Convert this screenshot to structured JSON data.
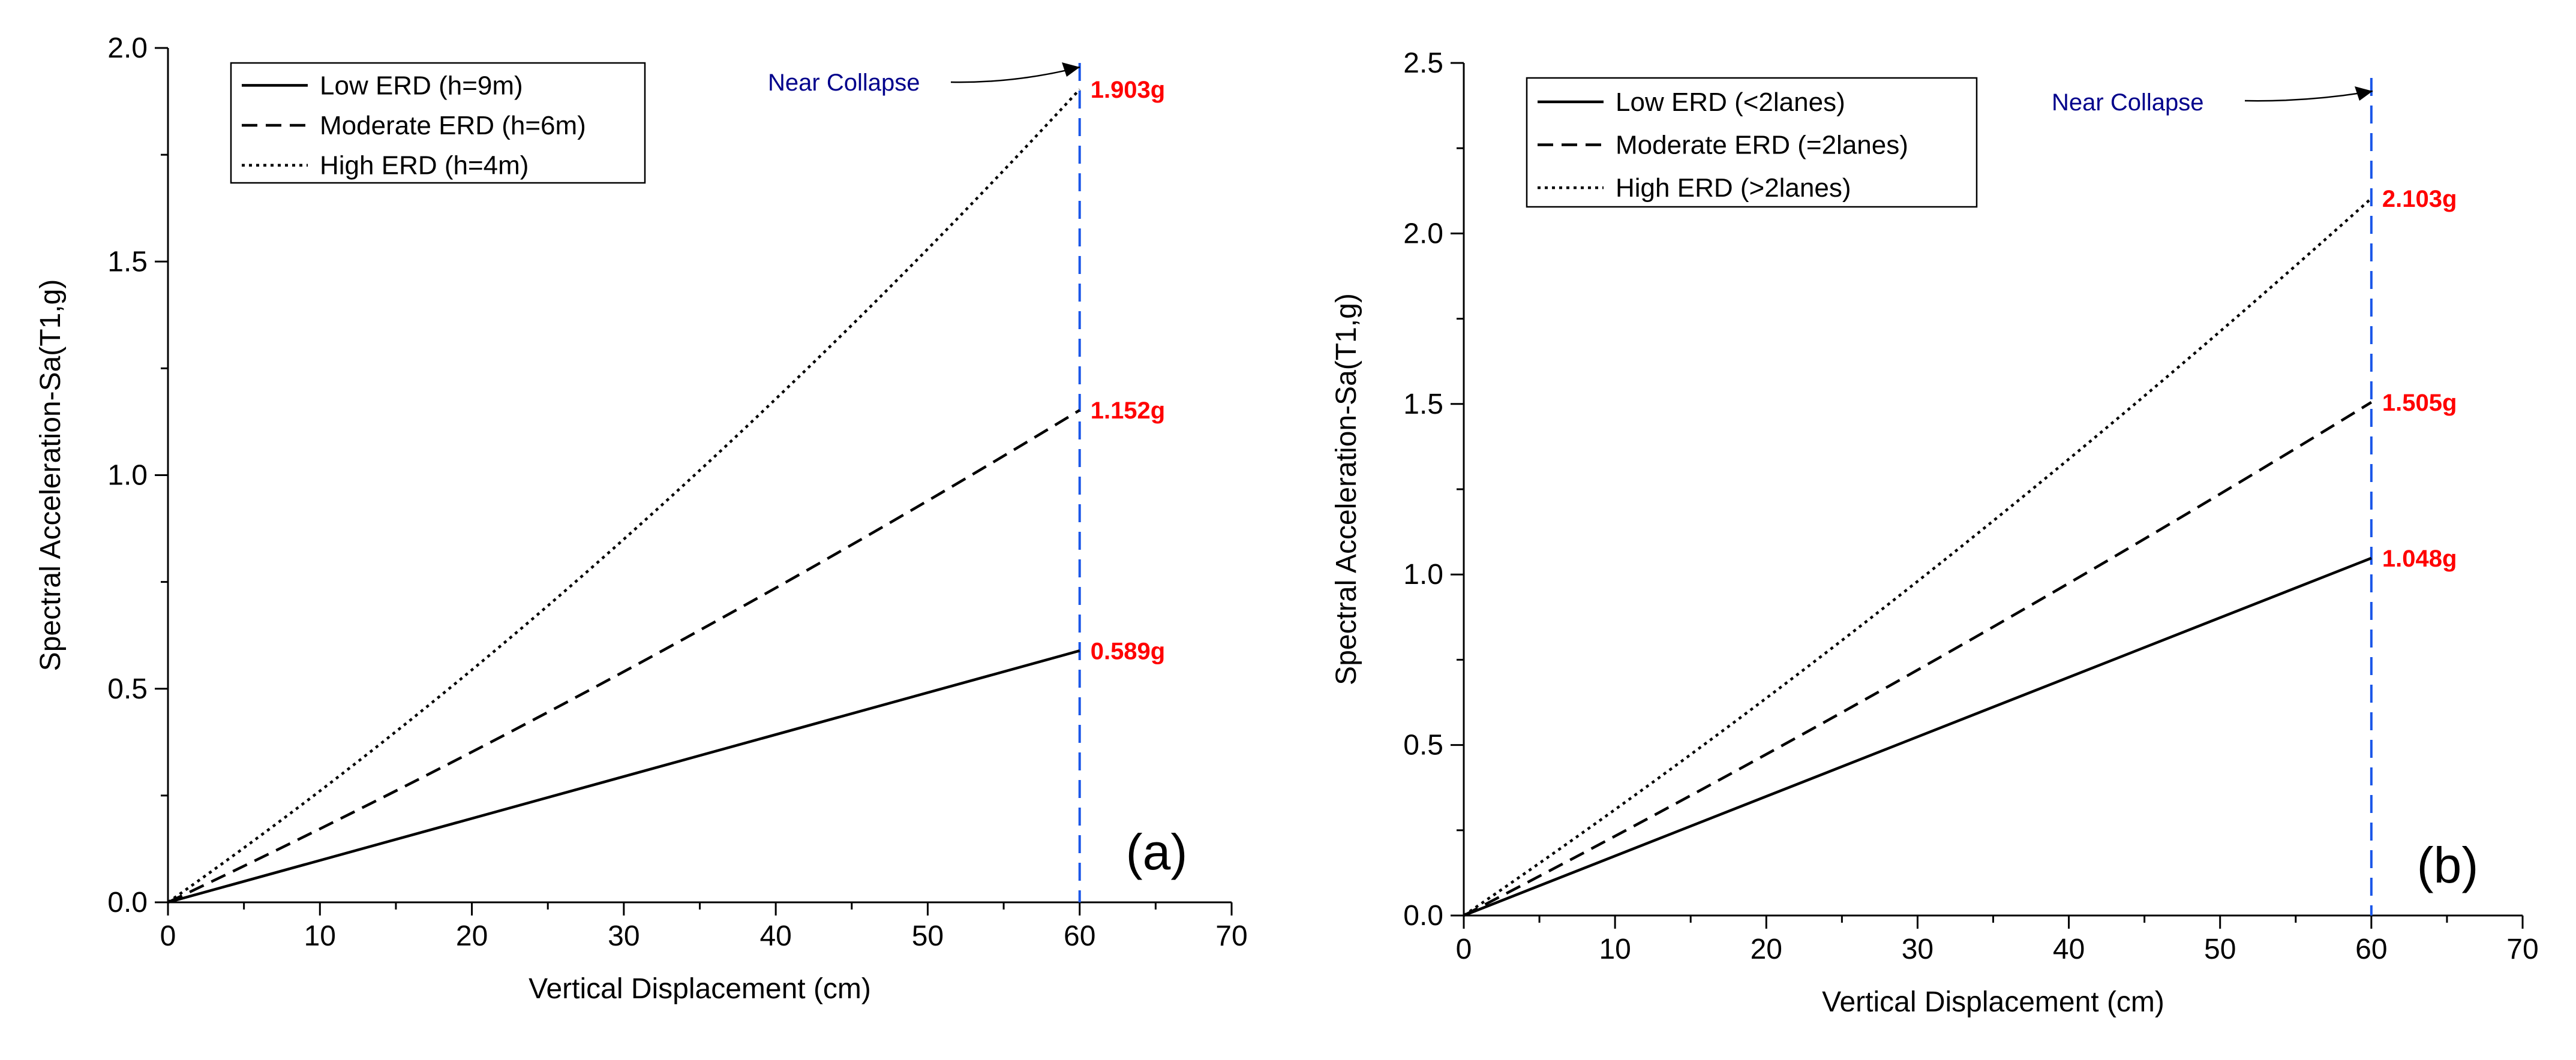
{
  "chart_data": [
    {
      "type": "line",
      "panel_label": "(a)",
      "xlabel": "Vertical Displacement (cm)",
      "ylabel": "Spectral Acceleration-Sa(T1,g)",
      "xlim": [
        0,
        70
      ],
      "ylim": [
        0,
        2.0
      ],
      "x_ticks": [
        "0",
        "10",
        "20",
        "30",
        "40",
        "50",
        "60",
        "70"
      ],
      "y_ticks": [
        "0.0",
        "0.5",
        "1.0",
        "1.5",
        "2.0"
      ],
      "grid": false,
      "legend_position": "top-left",
      "series": [
        {
          "name": "Low ERD (h=9m)",
          "style": "solid",
          "x": [
            0,
            60
          ],
          "y": [
            0,
            0.589
          ],
          "end_label": "0.589g"
        },
        {
          "name": "Moderate ERD (h=6m)",
          "style": "dashed",
          "x": [
            0,
            30,
            60
          ],
          "y": [
            0,
            0.54,
            1.152
          ],
          "end_label": "1.152g"
        },
        {
          "name": "High ERD (h=4m)",
          "style": "dotted",
          "x": [
            0,
            30,
            60
          ],
          "y": [
            0,
            0.85,
            1.903
          ],
          "end_label": "1.903g"
        }
      ],
      "annotations": {
        "near_collapse_label": "Near Collapse",
        "limit_x": 60,
        "limit_color": "#1a56e8",
        "value_color": "#ff0000"
      }
    },
    {
      "type": "line",
      "panel_label": "(b)",
      "xlabel": "Vertical Displacement (cm)",
      "ylabel": "Spectral Acceleration-Sa(T1,g)",
      "xlim": [
        0,
        70
      ],
      "ylim": [
        0,
        2.5
      ],
      "x_ticks": [
        "0",
        "10",
        "20",
        "30",
        "40",
        "50",
        "60",
        "70"
      ],
      "y_ticks": [
        "0.0",
        "0.5",
        "1.0",
        "1.5",
        "2.0",
        "2.5"
      ],
      "grid": false,
      "legend_position": "top-left",
      "series": [
        {
          "name": "Low ERD (<2lanes)",
          "style": "solid",
          "x": [
            0,
            60
          ],
          "y": [
            0,
            1.048
          ],
          "end_label": "1.048g"
        },
        {
          "name": "Moderate ERD (=2lanes)",
          "style": "dashed",
          "x": [
            0,
            30,
            60
          ],
          "y": [
            0,
            0.72,
            1.505
          ],
          "end_label": "1.505g"
        },
        {
          "name": "High ERD (>2lanes)",
          "style": "dotted",
          "x": [
            0,
            30,
            60
          ],
          "y": [
            0,
            0.98,
            2.103
          ],
          "end_label": "2.103g"
        }
      ],
      "annotations": {
        "near_collapse_label": "Near Collapse",
        "limit_x": 60,
        "limit_color": "#1a56e8",
        "value_color": "#ff0000"
      }
    }
  ]
}
